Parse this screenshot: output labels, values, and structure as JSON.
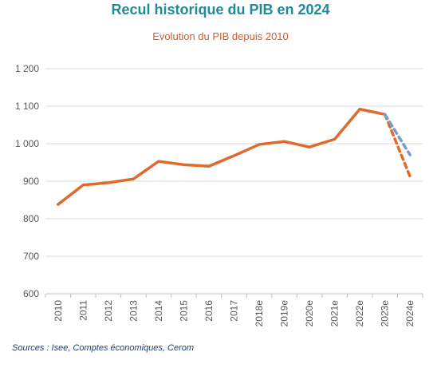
{
  "chart_data": {
    "type": "line",
    "title": "Recul historique du PIB en 2024",
    "subtitle": "Evolution du PIB depuis 2010",
    "categories": [
      "2010",
      "2011",
      "2012",
      "2013",
      "2014",
      "2015",
      "2016",
      "2017",
      "2018e",
      "2019e",
      "2020e",
      "2021e",
      "2022e",
      "2023e",
      "2024e"
    ],
    "series": [
      {
        "name": "",
        "color": "#e0692c",
        "style": "solid",
        "values": [
          838,
          890,
          896,
          906,
          953,
          944,
          940,
          968,
          998,
          1006,
          991,
          1012,
          1092,
          1078,
          null
        ]
      },
      {
        "name": "",
        "color": "#e0692c",
        "style": "dashed",
        "values": [
          null,
          null,
          null,
          null,
          null,
          null,
          null,
          null,
          null,
          null,
          null,
          null,
          null,
          1078,
          912
        ]
      },
      {
        "name": "",
        "color": "#7a9cc6",
        "style": "dashed",
        "values": [
          null,
          null,
          null,
          null,
          null,
          null,
          null,
          null,
          null,
          null,
          null,
          null,
          null,
          1078,
          970
        ]
      }
    ],
    "yticks": [
      "600",
      "700",
      "800",
      "900",
      "1 000",
      "1 100",
      "1 200"
    ],
    "ylim": [
      600,
      1200
    ],
    "grid": true
  },
  "source": "Sources : Isee, Comptes économiques, Cerom"
}
